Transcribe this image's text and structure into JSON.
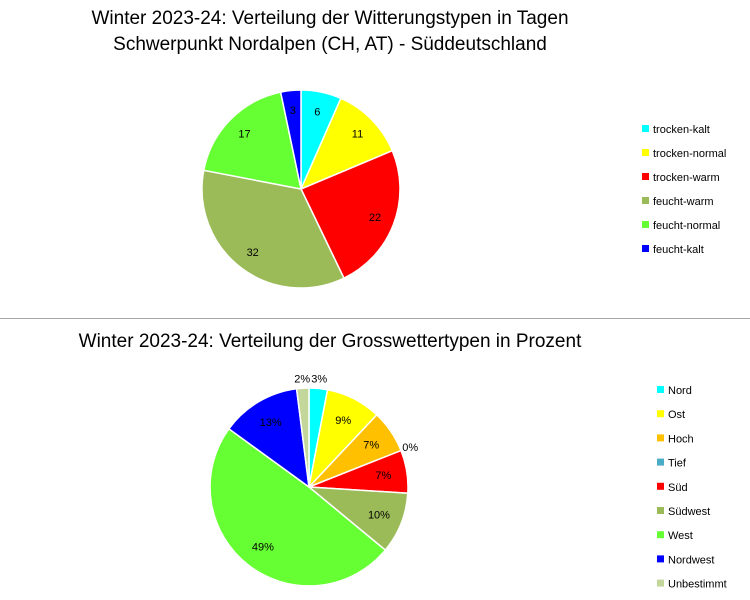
{
  "chart_data": [
    {
      "type": "pie",
      "title_lines": [
        "Winter 2023-24: Verteilung der Witterungstypen in Tagen",
        "Schwerpunkt Nordalpen (CH, AT) - Süddeutschland"
      ],
      "categories": [
        "trocken-kalt",
        "trocken-normal",
        "trocken-warm",
        "feucht-warm",
        "feucht-normal",
        "feucht-kalt"
      ],
      "values": [
        6,
        11,
        22,
        32,
        17,
        3
      ],
      "labels": [
        "6",
        "11",
        "22",
        "32",
        "17",
        "3"
      ],
      "colors": [
        "#00ffff",
        "#ffff00",
        "#ff0000",
        "#9bbb59",
        "#66ff33",
        "#0000ff"
      ],
      "legend_position": "right"
    },
    {
      "type": "pie",
      "title_lines": [
        "Winter 2023-24: Verteilung der Grosswettertypen in Prozent"
      ],
      "categories": [
        "Nord",
        "Ost",
        "Hoch",
        "Tief",
        "Süd",
        "Südwest",
        "West",
        "Nordwest",
        "Unbestimmt"
      ],
      "values": [
        3,
        9,
        7,
        0,
        7,
        10,
        49,
        13,
        2
      ],
      "labels": [
        "3%",
        "9%",
        "7%",
        "0%",
        "7%",
        "10%",
        "49%",
        "13%",
        "2%"
      ],
      "colors": [
        "#00ffff",
        "#ffff00",
        "#ffc000",
        "#4bacc6",
        "#ff0000",
        "#9bbb59",
        "#66ff33",
        "#0000ff",
        "#c4d79b"
      ],
      "legend_position": "right"
    }
  ]
}
